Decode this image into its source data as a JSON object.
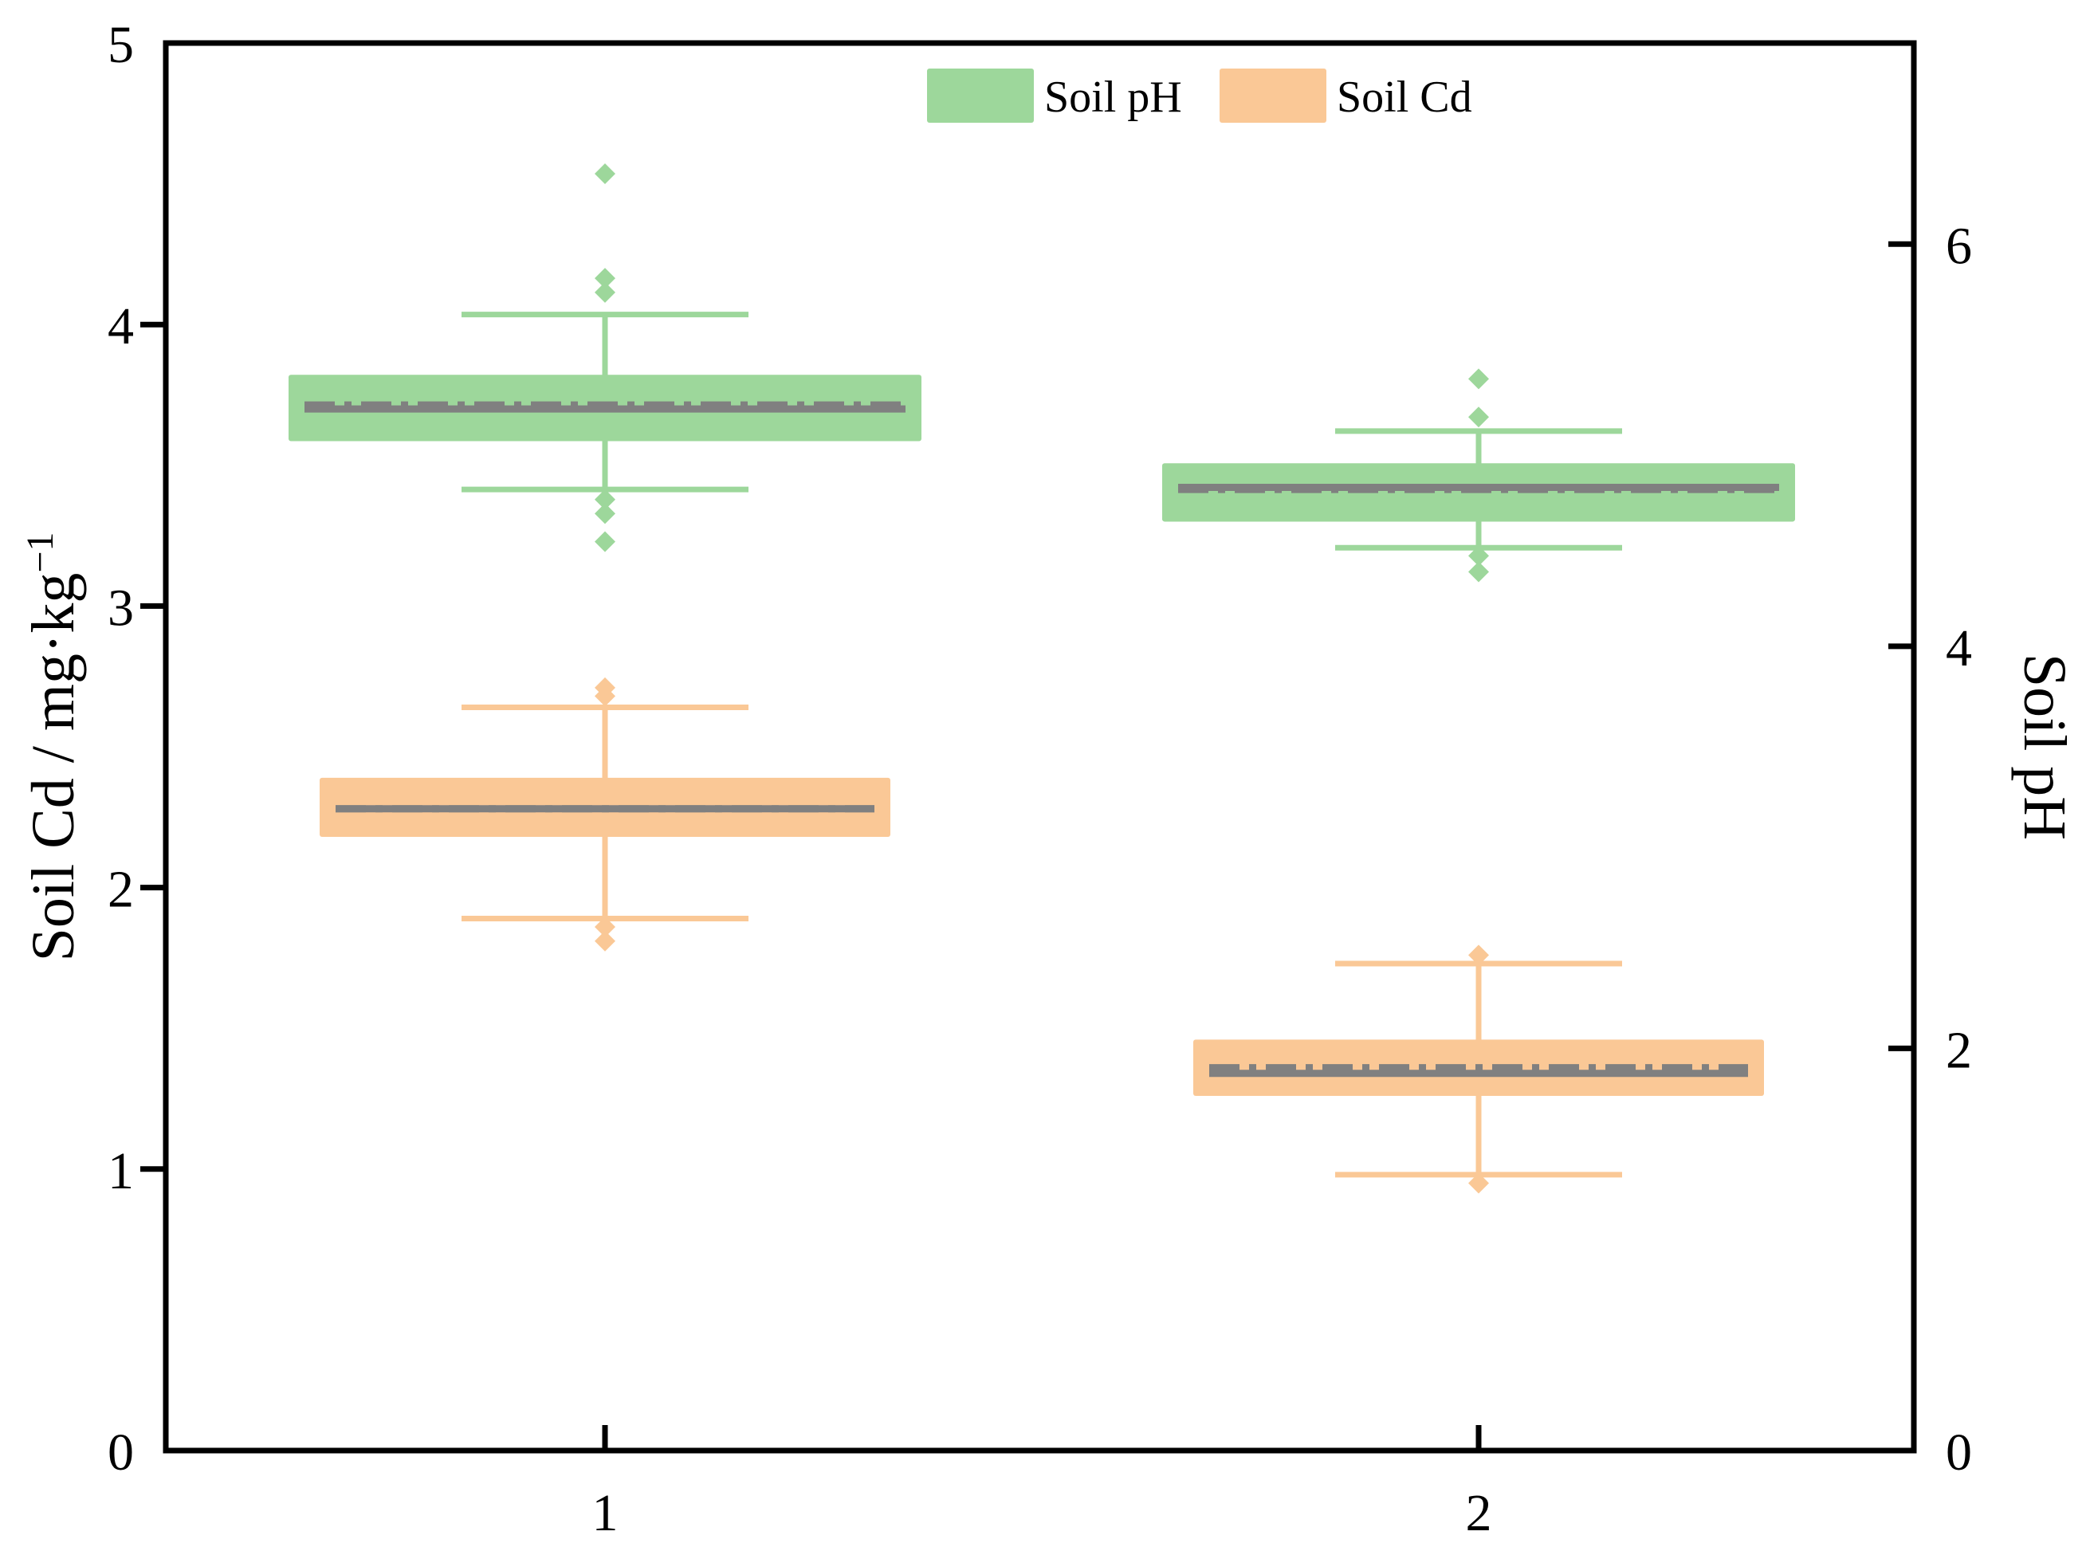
{
  "chart_data": {
    "type": "box",
    "categories": [
      "1",
      "2"
    ],
    "left_axis": {
      "label": "Soil Cd / mg·kg",
      "label_superscript": "−1",
      "range": [
        0,
        5
      ],
      "ticks": [
        {
          "value": 0,
          "label": "0"
        },
        {
          "value": 1,
          "label": "1"
        },
        {
          "value": 2,
          "label": "2"
        },
        {
          "value": 3,
          "label": "3"
        },
        {
          "value": 4,
          "label": "4"
        },
        {
          "value": 5,
          "label": "5"
        }
      ]
    },
    "right_axis": {
      "label": "Soil pH",
      "range": [
        0,
        7
      ],
      "ticks": [
        {
          "value": 0,
          "label": "0"
        },
        {
          "value": 2,
          "label": "2"
        },
        {
          "value": 4,
          "label": "4"
        },
        {
          "value": 6,
          "label": "6"
        }
      ]
    },
    "legend": {
      "position": "top-center",
      "items": [
        {
          "label": "Soil pH",
          "color": "#9dd79b"
        },
        {
          "label": "Soil Cd",
          "color": "#fac896"
        }
      ]
    },
    "series": [
      {
        "name": "Soil pH",
        "axis": "right",
        "color": "#9dd79b",
        "boxes": [
          {
            "category": "1",
            "q1": 5.02,
            "q3": 5.35,
            "median": 5.18,
            "mean": 5.2,
            "whisker_low": 4.78,
            "whisker_high": 5.65,
            "outliers": [
              6.35,
              5.83,
              5.76,
              4.73,
              4.66,
              4.52
            ]
          },
          {
            "category": "2",
            "q1": 4.62,
            "q3": 4.91,
            "median": 4.79,
            "mean": 4.78,
            "whisker_low": 4.49,
            "whisker_high": 5.07,
            "outliers": [
              5.33,
              5.14,
              4.45,
              4.37
            ]
          }
        ]
      },
      {
        "name": "Soil Cd",
        "axis": "left",
        "color": "#fac896",
        "boxes": [
          {
            "category": "1",
            "q1": 2.18,
            "q3": 2.39,
            "median": 2.28,
            "mean": 2.28,
            "whisker_low": 1.89,
            "whisker_high": 2.64,
            "outliers": [
              2.71,
              2.68,
              1.86,
              1.81
            ]
          },
          {
            "category": "2",
            "q1": 1.26,
            "q3": 1.46,
            "median": 1.34,
            "mean": 1.36,
            "whisker_low": 0.98,
            "whisker_high": 1.73,
            "outliers": [
              1.76,
              0.95
            ]
          }
        ]
      }
    ],
    "median_color": "#808080"
  }
}
